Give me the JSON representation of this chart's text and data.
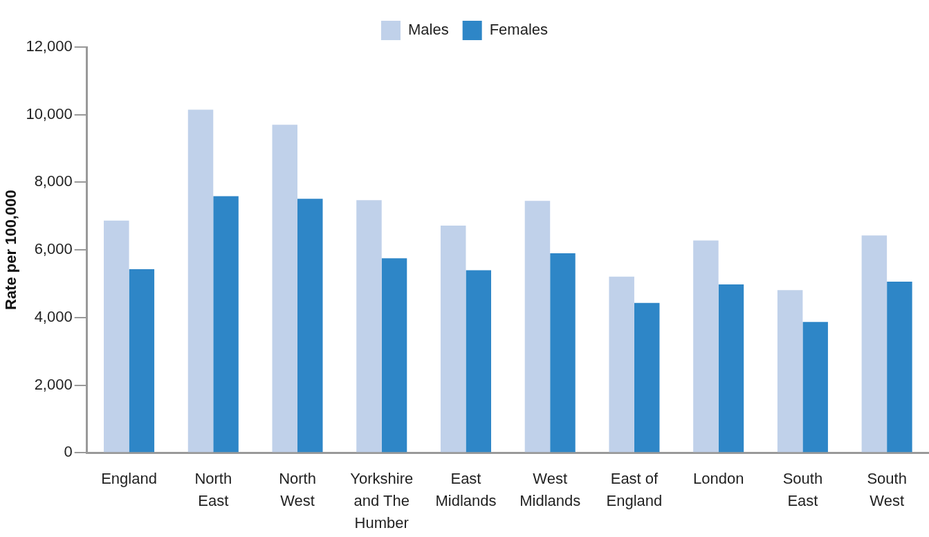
{
  "chart_data": {
    "type": "bar",
    "ylabel": "Rate per 100,000",
    "categories": [
      "England",
      "North East",
      "North West",
      "Yorkshire and The Humber",
      "East Midlands",
      "West Midlands",
      "East of England",
      "London",
      "South East",
      "South West"
    ],
    "series": [
      {
        "name": "Males",
        "color": "#c0d1ea",
        "values": [
          6870,
          10150,
          9700,
          7470,
          6720,
          7450,
          5210,
          6280,
          4810,
          6430
        ]
      },
      {
        "name": "Females",
        "color": "#2e86c7",
        "values": [
          5430,
          7590,
          7510,
          5750,
          5400,
          5900,
          4430,
          4980,
          3870,
          5060
        ]
      }
    ],
    "ylim": [
      0,
      12000
    ],
    "yticks": [
      0,
      {
        "value": 2000,
        "label": "2,000"
      },
      {
        "value": 4000,
        "label": "4,000"
      },
      {
        "value": 6000,
        "label": "6,000"
      },
      {
        "value": 8000,
        "label": "8,000"
      },
      {
        "value": 10000,
        "label": "10,000"
      },
      {
        "value": 12000,
        "label": "12,000"
      }
    ],
    "grid": false,
    "legend": "top"
  }
}
